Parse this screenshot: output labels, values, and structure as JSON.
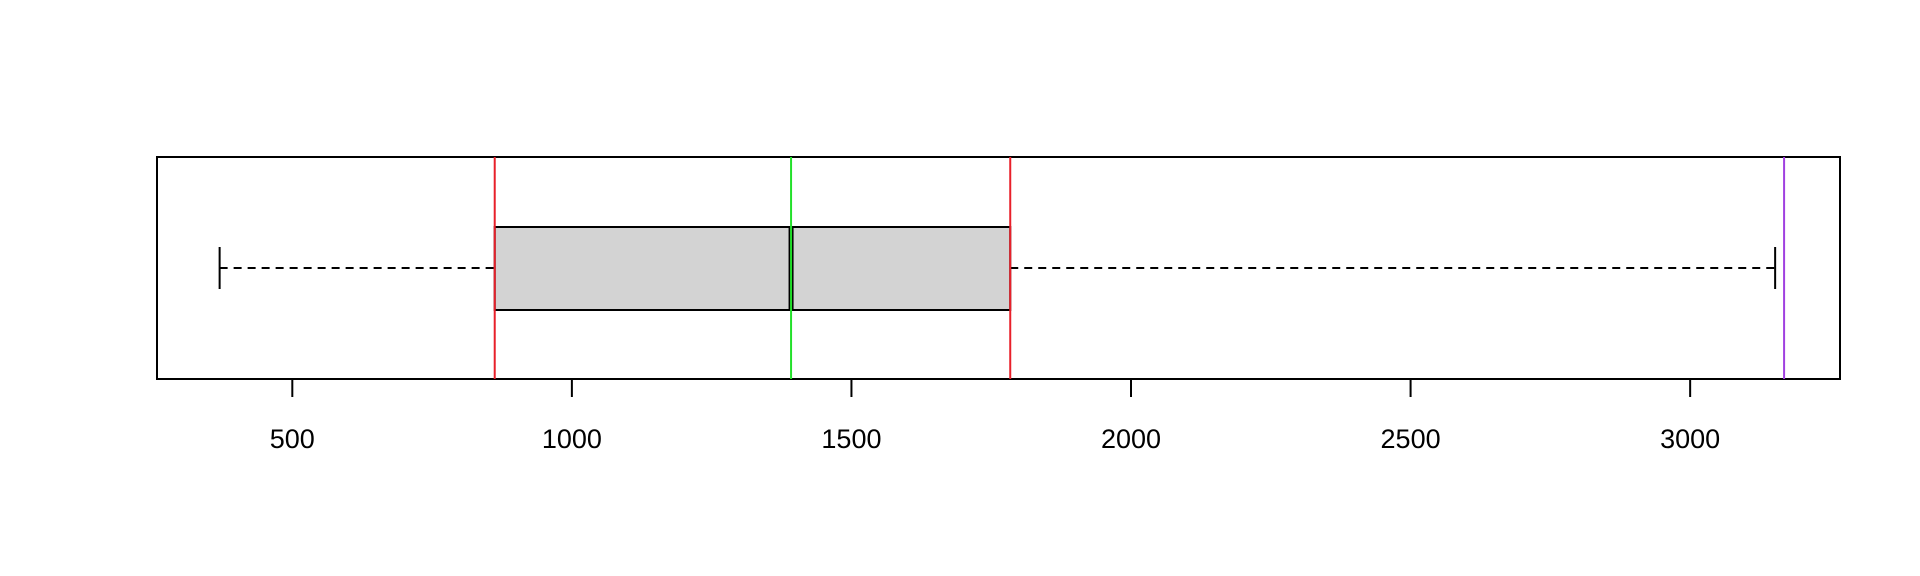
{
  "chart_data": {
    "type": "boxplot",
    "orientation": "horizontal",
    "title": "",
    "xlabel": "",
    "ylabel": "",
    "xlim": [
      258,
      3268
    ],
    "x_ticks": [
      500,
      1000,
      1500,
      2000,
      2500,
      3000
    ],
    "x_tick_labels": [
      "500",
      "1000",
      "1500",
      "2000",
      "2500",
      "3000"
    ],
    "grid": false,
    "box": {
      "whisker_low": 370,
      "q1": 862,
      "median": 1392,
      "q3": 1784,
      "whisker_high": 3152
    },
    "reference_lines": [
      {
        "value": 862,
        "color": "#e8202a"
      },
      {
        "value": 1784,
        "color": "#e8202a"
      },
      {
        "value": 1392,
        "color": "#22e02a"
      },
      {
        "value": 3168,
        "color": "#a040e0"
      }
    ],
    "colors": {
      "box_fill": "#d3d3d3",
      "outline": "#000000"
    }
  }
}
